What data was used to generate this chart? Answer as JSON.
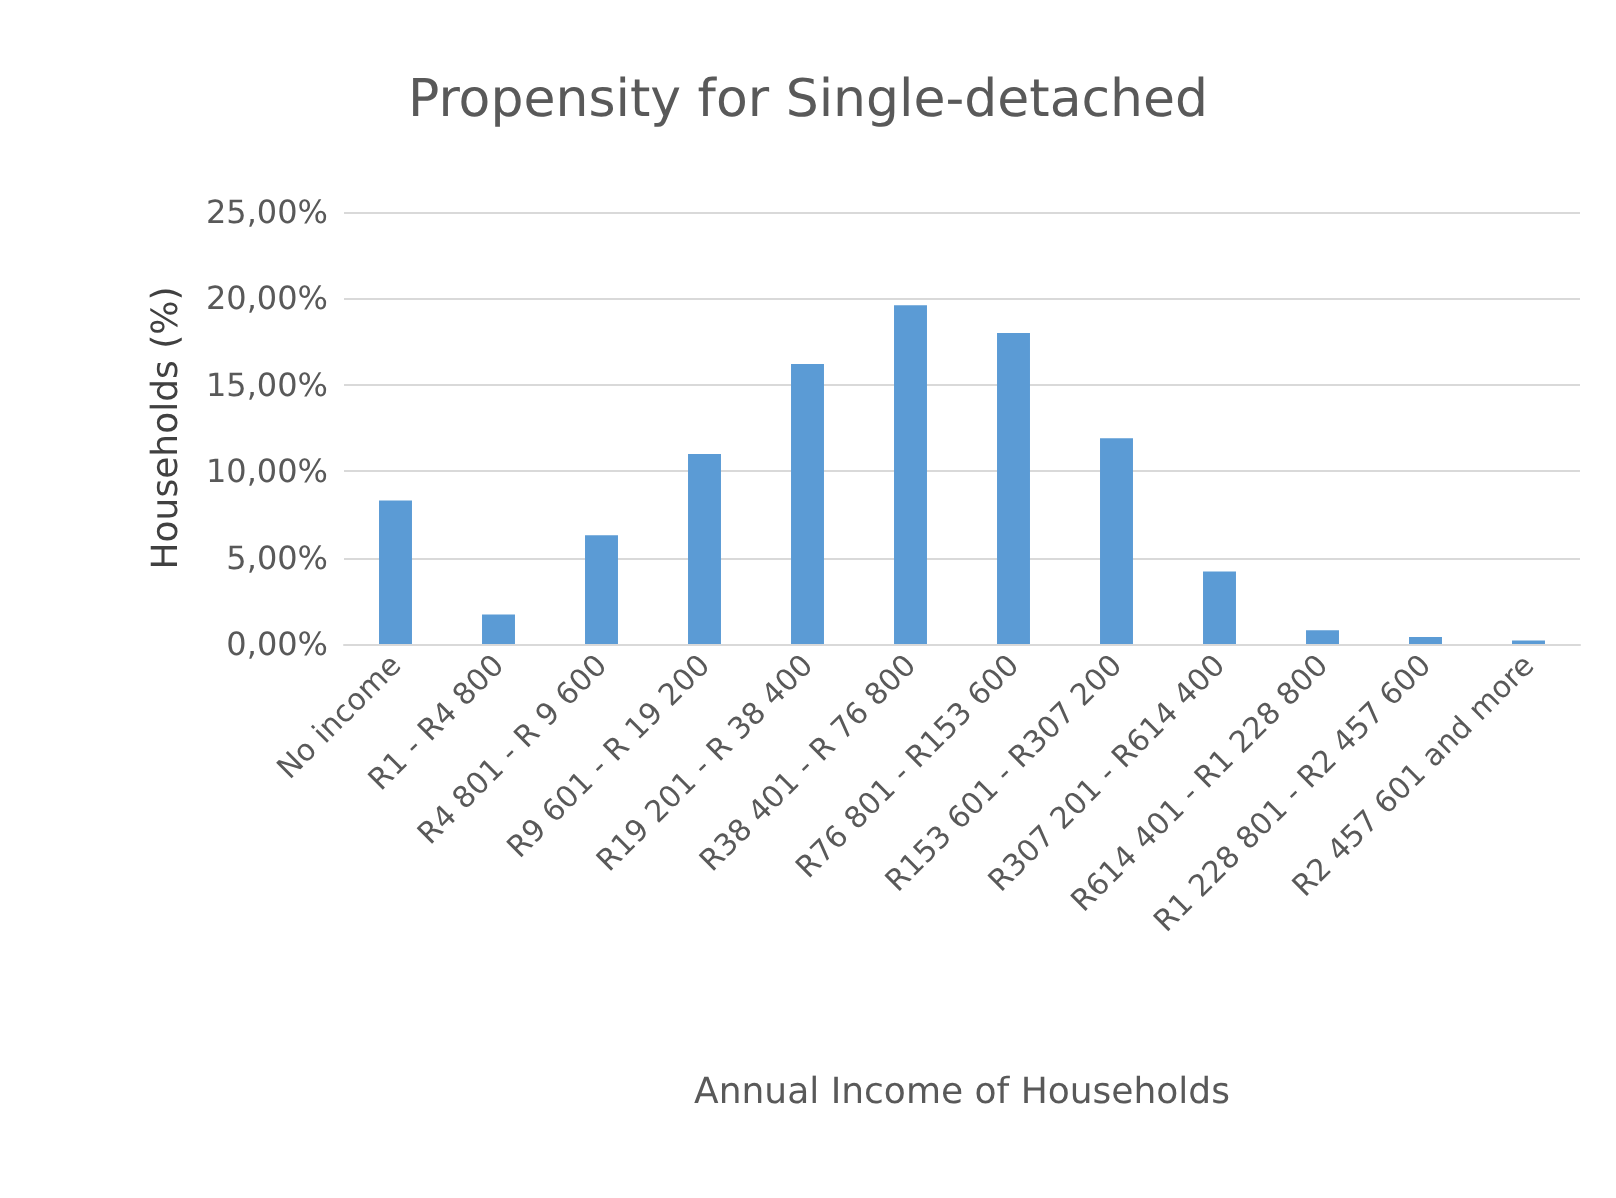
{
  "chart_data": {
    "type": "bar",
    "title": "Propensity for Single-detached",
    "xlabel": "Annual Income of Households",
    "ylabel": "Households (%)",
    "categories": [
      "No income",
      "R1 - R4 800",
      "R4 801 - R 9 600",
      "R9 601 - R 19 200",
      "R19 201 - R 38 400",
      "R38 401 - R 76 800",
      "R76 801 - R153 600",
      "R153 601 - R307 200",
      "R307 201 - R614 400",
      "R614 401 - R1 228 800",
      "R1 228 801 - R2 457 600",
      "R2 457 601 and more"
    ],
    "values": [
      8.3,
      1.7,
      6.3,
      11.0,
      16.2,
      19.6,
      18.0,
      11.9,
      4.2,
      0.8,
      0.4,
      0.2
    ],
    "color": "#5b9bd5",
    "ylim": [
      0,
      25
    ],
    "yticks": [
      {
        "value": 0,
        "label": "0,00%"
      },
      {
        "value": 5,
        "label": "5,00%"
      },
      {
        "value": 10,
        "label": "10,00%"
      },
      {
        "value": 15,
        "label": "15,00%"
      },
      {
        "value": 20,
        "label": "20,00%"
      },
      {
        "value": 25,
        "label": "25,00%"
      }
    ],
    "grid": "y"
  }
}
